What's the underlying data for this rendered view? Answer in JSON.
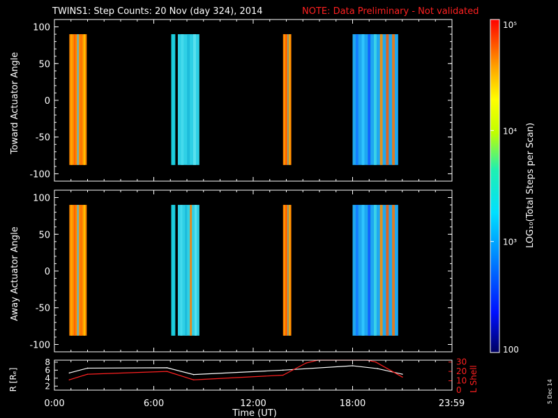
{
  "header": {
    "title": "TWINS1: Step Counts: 20 Nov (day 324), 2014",
    "note": "NOTE: Data Preliminary - Not validated"
  },
  "side_date": "5 Dec 14",
  "chart_data": [
    {
      "type": "heatmap",
      "name": "toward",
      "ylabel": "Toward Actuator Angle",
      "ylim": [
        -110,
        110
      ],
      "yticks": [
        "100",
        "50",
        "0",
        "-50",
        "-100"
      ],
      "ytick_values": [
        100,
        50,
        0,
        -50,
        -100
      ],
      "xlim": [
        0,
        24
      ],
      "data_y_range": [
        -88,
        90
      ],
      "blocks": [
        {
          "t0": 0.9,
          "t1": 1.95,
          "base": "#ff8a00",
          "stripes": [
            "#ffb000",
            "#ff5a00",
            "#33c9ff",
            "#ff6a00",
            "#ffd000"
          ]
        },
        {
          "t0": 7.05,
          "t1": 7.3,
          "base": "#19c8d8",
          "stripes": [
            "#22d0e0"
          ]
        },
        {
          "t0": 7.45,
          "t1": 8.75,
          "base": "#2fd0e6",
          "stripes": [
            "#48dcec",
            "#1ab8d8",
            "#5fe3ee"
          ]
        },
        {
          "t0": 13.8,
          "t1": 14.3,
          "base": "#ff7a00",
          "stripes": [
            "#ffaa00",
            "#ff4a00",
            "#19c8e8",
            "#ffd000"
          ]
        },
        {
          "t0": 18.0,
          "t1": 20.75,
          "base": "#1ea8f0",
          "stripes": [
            "#1478ff",
            "#33c9ff",
            "#0f5aff",
            "#40d8e8",
            "#ff9000",
            "#ff5a00",
            "#ff7400"
          ]
        }
      ]
    },
    {
      "type": "heatmap",
      "name": "away",
      "ylabel": "Away Actuator Angle",
      "ylim": [
        -110,
        110
      ],
      "yticks": [
        "100",
        "50",
        "0",
        "-50",
        "-100"
      ],
      "ytick_values": [
        100,
        50,
        0,
        -50,
        -100
      ],
      "xlim": [
        0,
        24
      ],
      "data_y_range": [
        -88,
        90
      ],
      "blocks": [
        {
          "t0": 0.9,
          "t1": 1.95,
          "base": "#ff8a00",
          "stripes": [
            "#ffb000",
            "#ff5a00",
            "#33c9ff",
            "#ff6a00",
            "#ffd000"
          ]
        },
        {
          "t0": 7.05,
          "t1": 7.3,
          "base": "#19c8d8",
          "stripes": [
            "#22d0e0"
          ]
        },
        {
          "t0": 7.45,
          "t1": 8.75,
          "base": "#2fd0e6",
          "stripes": [
            "#48dcec",
            "#1ab8d8",
            "#ff8000",
            "#5fe3ee"
          ]
        },
        {
          "t0": 13.8,
          "t1": 14.3,
          "base": "#ff7a00",
          "stripes": [
            "#ffaa00",
            "#ff4a00",
            "#19c8e8",
            "#ffd000"
          ]
        },
        {
          "t0": 18.0,
          "t1": 20.75,
          "base": "#1ea8f0",
          "stripes": [
            "#1478ff",
            "#33c9ff",
            "#0f5aff",
            "#40d8e8",
            "#ff9000",
            "#ff5a00",
            "#ff7400"
          ]
        }
      ]
    },
    {
      "type": "line",
      "name": "orbit",
      "ylabel": "R [Rₑ]",
      "y2label": "L Shell",
      "xlabel": "Time (UT)",
      "xticks": [
        "0:00",
        "6:00",
        "12:00",
        "18:00",
        "23:59"
      ],
      "xtick_values": [
        0,
        6,
        12,
        18,
        23.983
      ],
      "yticks": [
        "8",
        "6",
        "4",
        "2"
      ],
      "ytick_values": [
        8,
        6,
        4,
        2
      ],
      "ylim": [
        1,
        8.5
      ],
      "y2ticks": [
        "30",
        "20",
        "10",
        "0"
      ],
      "y2tick_values": [
        30,
        20,
        10,
        0
      ],
      "y2lim": [
        0,
        32
      ],
      "series": [
        {
          "name": "R [Rₑ]",
          "color": "#ffffff",
          "axis": "left",
          "x": [
            0.9,
            2.0,
            6.8,
            8.4,
            13.8,
            18.0,
            19.5,
            21.0
          ],
          "y": [
            5.3,
            6.5,
            6.6,
            4.9,
            6.0,
            7.1,
            6.4,
            5.0
          ]
        },
        {
          "name": "L Shell",
          "color": "#ff2020",
          "axis": "right",
          "x": [
            0.9,
            2.0,
            6.8,
            8.4,
            13.8,
            15.2,
            15.9,
            18.9,
            19.4,
            21.0
          ],
          "y": [
            11,
            17,
            20,
            11,
            16,
            29,
            32,
            32,
            30,
            14
          ]
        }
      ]
    }
  ],
  "colorbar": {
    "label": "LOG₁₀(Total Steps per Scan)",
    "ticks": [
      "10⁵",
      "10⁴",
      "10³",
      "100"
    ],
    "tick_values": [
      5,
      4,
      3,
      2
    ],
    "range": [
      2,
      5
    ]
  }
}
